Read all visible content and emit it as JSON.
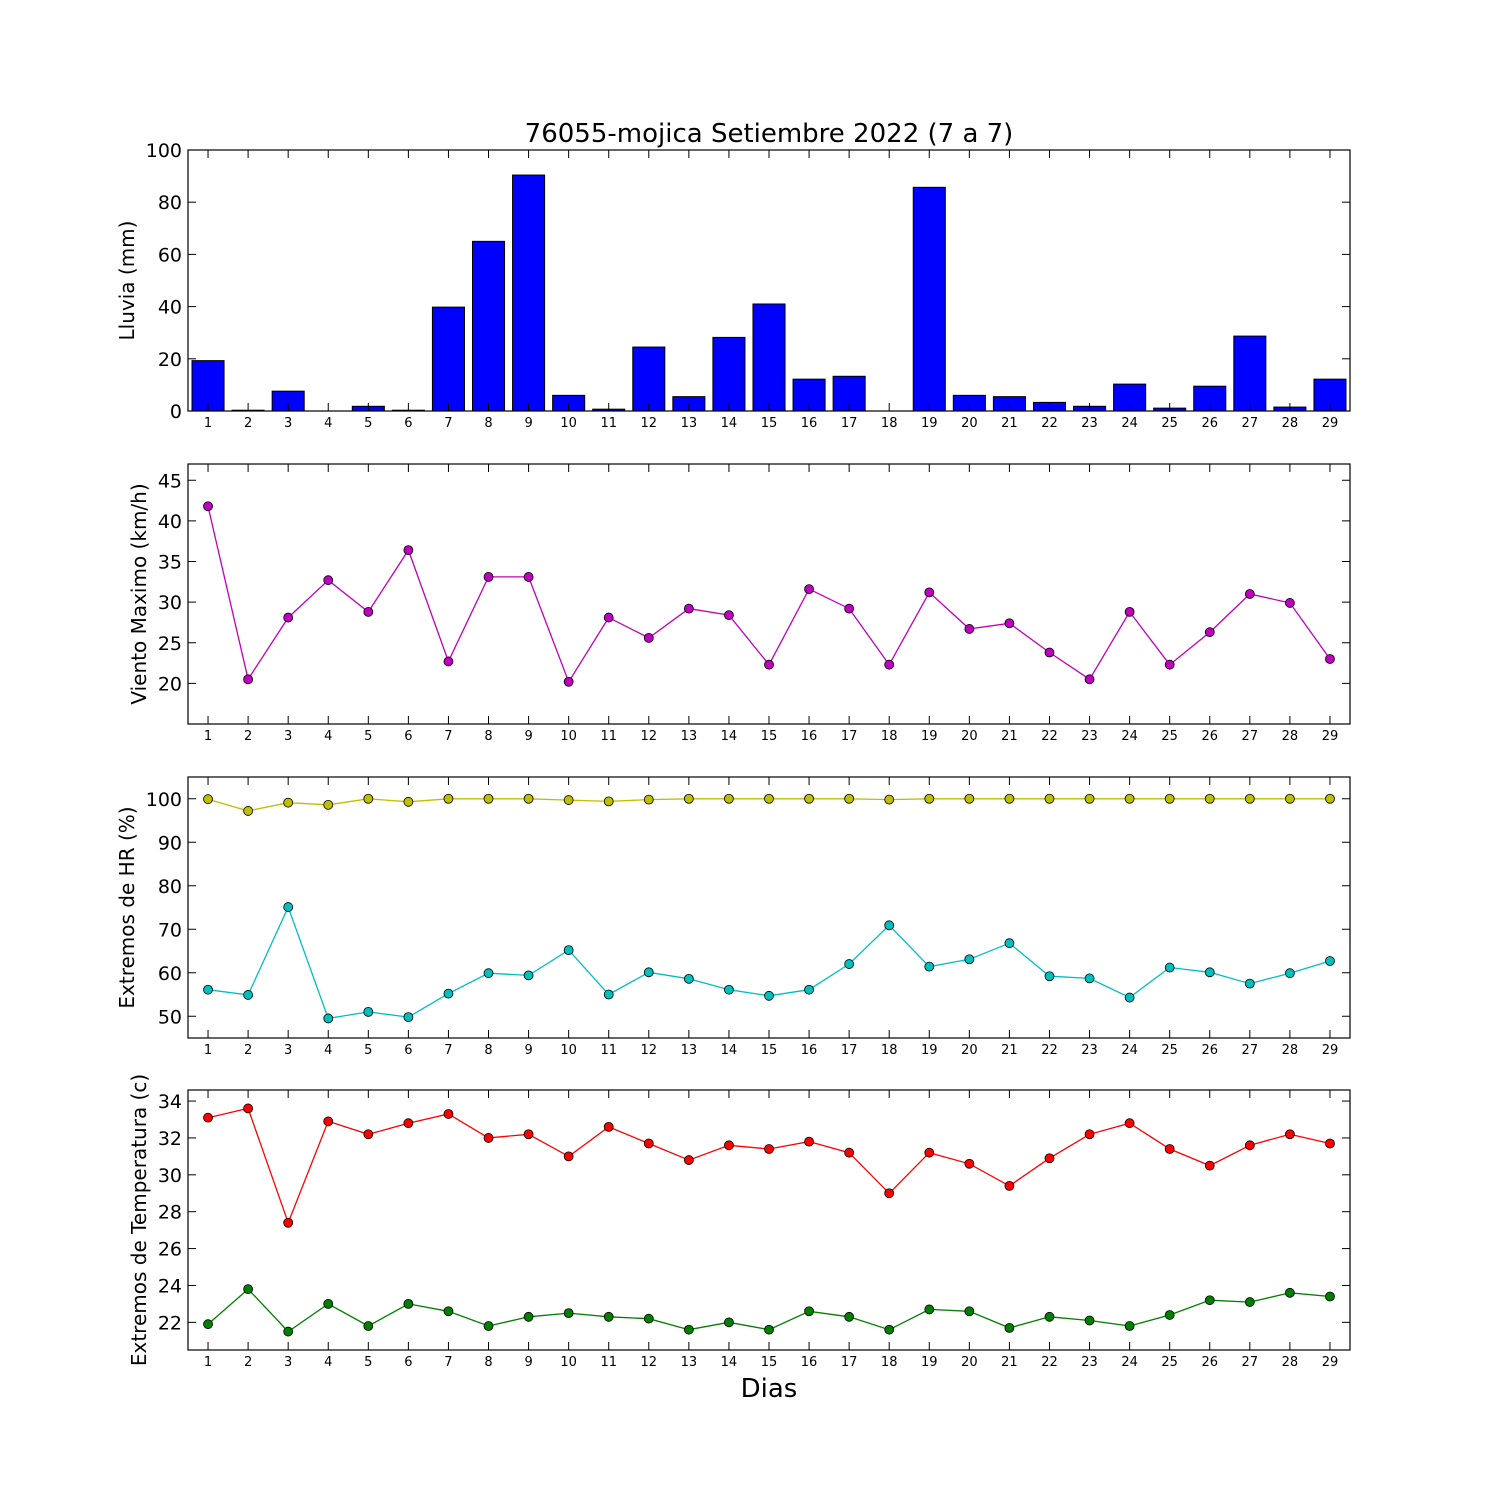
{
  "figure": {
    "title": "76055-mojica Setiembre 2022  (7 a 7)",
    "xlabel": "Dias"
  },
  "chart_data": [
    {
      "type": "bar",
      "ylabel": "Lluvia (mm)",
      "ylim": [
        0,
        100
      ],
      "yticks": [
        0,
        20,
        40,
        60,
        80,
        100
      ],
      "xlim": [
        0.5,
        29.5
      ],
      "categories": [
        1,
        2,
        3,
        4,
        5,
        6,
        7,
        8,
        9,
        10,
        11,
        12,
        13,
        14,
        15,
        16,
        17,
        18,
        19,
        20,
        21,
        22,
        23,
        24,
        25,
        26,
        27,
        28,
        29
      ],
      "series": [
        {
          "color": "#0000ff",
          "values": [
            19.3,
            0.3,
            7.6,
            0,
            1.8,
            0.3,
            39.8,
            65,
            90.4,
            6,
            0.7,
            24.5,
            5.5,
            28.2,
            41,
            12.2,
            13.3,
            0,
            85.7,
            6,
            5.5,
            3.3,
            1.8,
            10.3,
            1.1,
            9.5,
            28.7,
            1.5,
            12.2
          ]
        }
      ],
      "grid": false
    },
    {
      "type": "line",
      "ylabel": "Viento Maximo (km/h)",
      "ylim": [
        15,
        47
      ],
      "yticks": [
        20,
        25,
        30,
        35,
        40,
        45
      ],
      "xlim": [
        0.5,
        29.5
      ],
      "x": [
        1,
        2,
        3,
        4,
        5,
        6,
        7,
        8,
        9,
        10,
        11,
        12,
        13,
        14,
        15,
        16,
        17,
        18,
        19,
        20,
        21,
        22,
        23,
        24,
        25,
        26,
        27,
        28,
        29
      ],
      "series": [
        {
          "color": "#bf00bf",
          "values": [
            41.8,
            20.5,
            28.1,
            32.7,
            28.8,
            36.4,
            22.7,
            33.1,
            33.1,
            20.2,
            28.1,
            25.6,
            29.2,
            28.4,
            22.3,
            31.6,
            29.2,
            22.3,
            31.2,
            26.7,
            27.4,
            23.8,
            20.5,
            28.8,
            22.3,
            26.3,
            31.0,
            29.9,
            23.0
          ]
        }
      ],
      "grid": false
    },
    {
      "type": "line",
      "ylabel": "Extremos de HR (%)",
      "ylim": [
        45,
        105
      ],
      "yticks": [
        50,
        60,
        70,
        80,
        90,
        100
      ],
      "xlim": [
        0.5,
        29.5
      ],
      "x": [
        1,
        2,
        3,
        4,
        5,
        6,
        7,
        8,
        9,
        10,
        11,
        12,
        13,
        14,
        15,
        16,
        17,
        18,
        19,
        20,
        21,
        22,
        23,
        24,
        25,
        26,
        27,
        28,
        29
      ],
      "series": [
        {
          "color": "#bfbf00",
          "values": [
            99.9,
            97.2,
            99.1,
            98.6,
            100,
            99.3,
            100,
            100,
            100,
            99.7,
            99.4,
            99.8,
            100,
            100,
            100,
            100,
            100,
            99.8,
            100,
            100,
            100,
            100,
            100,
            100,
            100,
            100,
            100,
            100,
            100
          ]
        },
        {
          "color": "#00bfbf",
          "values": [
            56.1,
            54.9,
            75.1,
            49.5,
            51.0,
            49.8,
            55.2,
            59.9,
            59.4,
            65.2,
            55.0,
            60.1,
            58.6,
            56.1,
            54.7,
            56.1,
            62.0,
            70.9,
            61.4,
            63.1,
            66.8,
            59.2,
            58.7,
            54.3,
            61.2,
            60.1,
            57.5,
            59.9,
            62.7
          ]
        }
      ],
      "grid": false
    },
    {
      "type": "line",
      "ylabel": "Extremos de Temperatura (c)",
      "ylim": [
        20.5,
        34.6
      ],
      "yticks": [
        22,
        24,
        26,
        28,
        30,
        32,
        34
      ],
      "xlim": [
        0.5,
        29.5
      ],
      "x": [
        1,
        2,
        3,
        4,
        5,
        6,
        7,
        8,
        9,
        10,
        11,
        12,
        13,
        14,
        15,
        16,
        17,
        18,
        19,
        20,
        21,
        22,
        23,
        24,
        25,
        26,
        27,
        28,
        29
      ],
      "series": [
        {
          "color": "#ff0000",
          "values": [
            33.1,
            33.6,
            27.4,
            32.9,
            32.2,
            32.8,
            33.3,
            32.0,
            32.2,
            31.0,
            32.6,
            31.7,
            30.8,
            31.6,
            31.4,
            31.8,
            31.2,
            29.0,
            31.2,
            30.6,
            29.4,
            30.9,
            32.2,
            32.8,
            31.4,
            30.5,
            31.6,
            32.2,
            31.7
          ]
        },
        {
          "color": "#007f00",
          "values": [
            21.9,
            23.8,
            21.5,
            23.0,
            21.8,
            23.0,
            22.6,
            21.8,
            22.3,
            22.5,
            22.3,
            22.2,
            21.6,
            22.0,
            21.6,
            22.6,
            22.3,
            21.6,
            22.7,
            22.6,
            21.7,
            22.3,
            22.1,
            21.8,
            22.4,
            23.2,
            23.1,
            23.6,
            23.4
          ]
        }
      ],
      "grid": false
    }
  ]
}
